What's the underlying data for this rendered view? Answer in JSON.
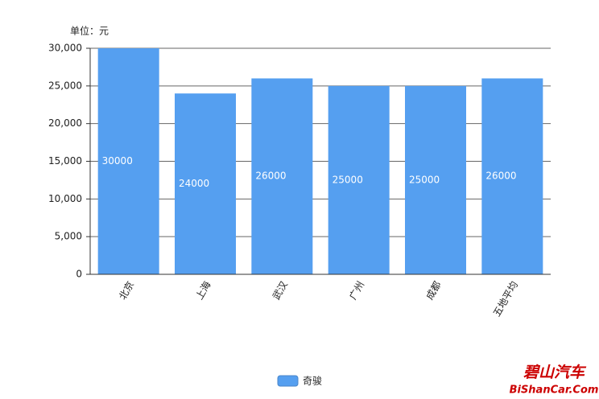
{
  "chart_data": {
    "type": "bar",
    "unit_label": "单位：元",
    "categories": [
      "北京",
      "上海",
      "武汉",
      "广州",
      "成都",
      "五地平均"
    ],
    "series": [
      {
        "name": "奇骏",
        "color": "#559ff0",
        "values": [
          30000,
          24000,
          26000,
          25000,
          25000,
          26000
        ]
      }
    ],
    "ylim": [
      0,
      30000
    ],
    "yticks": [
      0,
      {
        "value": 5000,
        "label": "5,000"
      },
      {
        "value": 10000,
        "label": "10,000"
      },
      {
        "value": 15000,
        "label": "15,000"
      },
      {
        "value": 20000,
        "label": "20,000"
      },
      {
        "value": 25000,
        "label": "25,000"
      },
      {
        "value": 30000,
        "label": "30,000"
      }
    ],
    "grid": true,
    "legend": "bottom",
    "watermark": [
      "碧山汽车",
      "BiShanCar.Com"
    ]
  }
}
